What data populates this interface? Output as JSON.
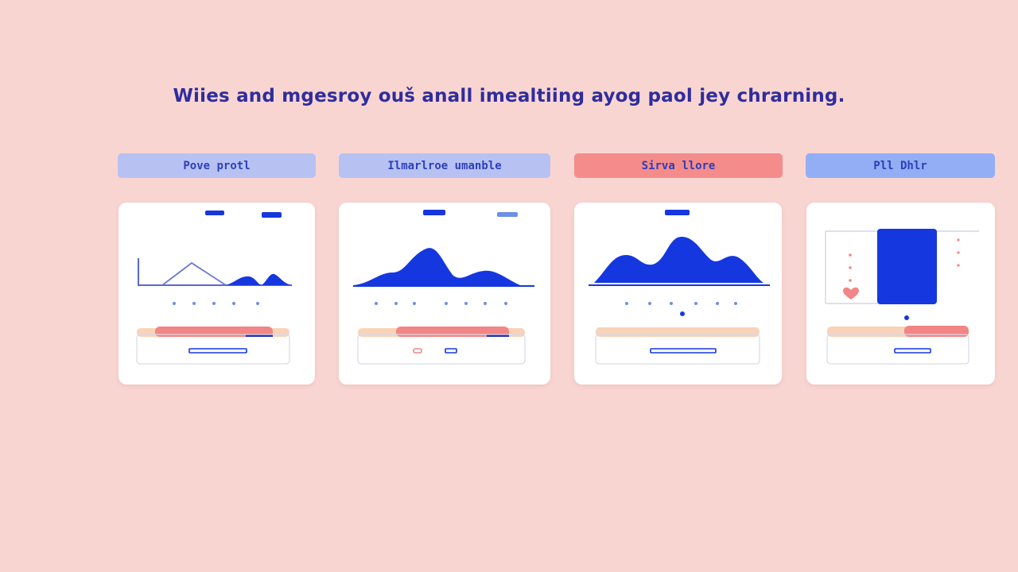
{
  "headline": "Wiies and mgesroy ouš anall imealtiing ayog paol jey chrarning.",
  "tabs": [
    {
      "label": "Pove protl",
      "color": "#b7c2f3"
    },
    {
      "label": "Ilmarlroe umanble",
      "color": "#b7c2f3"
    },
    {
      "label": "Sirva llore",
      "color": "#f58c8c"
    },
    {
      "label": "Pll Dhlr",
      "color": "#93aef4"
    }
  ],
  "colors": {
    "background": "#f9d5d2",
    "accent_blue": "#1537e0",
    "accent_red": "#f28585",
    "peach": "#f9d3b8",
    "headline": "#2f2d9c"
  },
  "cards": [
    {
      "icon": "line-chart-icon"
    },
    {
      "icon": "area-chart-icon"
    },
    {
      "icon": "mountain-chart-icon"
    },
    {
      "icon": "bar-block-icon"
    }
  ]
}
